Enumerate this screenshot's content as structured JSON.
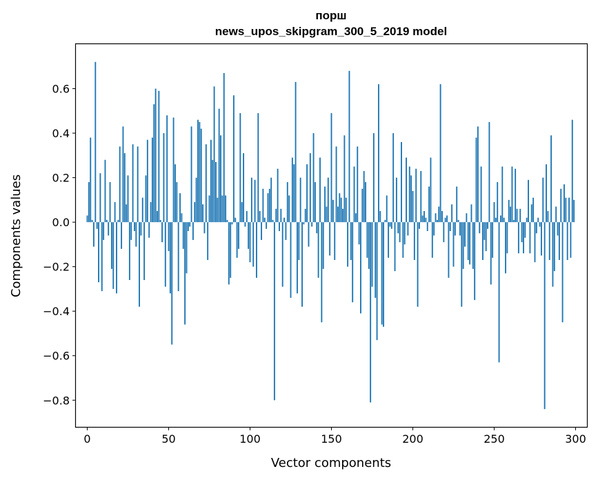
{
  "chart_data": {
    "type": "bar",
    "title": "порш",
    "subtitle": "news_upos_skipgram_300_5_2019 model",
    "xlabel": "Vector components",
    "ylabel": "Components values",
    "xlim": [
      -7,
      307
    ],
    "ylim": [
      -0.92,
      0.8
    ],
    "xticks": [
      0,
      50,
      100,
      150,
      200,
      250,
      300
    ],
    "xtick_labels": [
      "0",
      "50",
      "100",
      "150",
      "200",
      "250",
      "300"
    ],
    "yticks": [
      -0.8,
      -0.6,
      -0.4,
      -0.2,
      0.0,
      0.2,
      0.4,
      0.6
    ],
    "ytick_labels": [
      "−0.8",
      "−0.6",
      "−0.4",
      "−0.2",
      "0.0",
      "0.2",
      "0.4",
      "0.6"
    ],
    "bar_color": "#1f77b4",
    "grid": false,
    "x": [
      0,
      1,
      2,
      3,
      4,
      5,
      6,
      7,
      8,
      9,
      10,
      11,
      12,
      13,
      14,
      15,
      16,
      17,
      18,
      19,
      20,
      21,
      22,
      23,
      24,
      25,
      26,
      27,
      28,
      29,
      30,
      31,
      32,
      33,
      34,
      35,
      36,
      37,
      38,
      39,
      40,
      41,
      42,
      43,
      44,
      45,
      46,
      47,
      48,
      49,
      50,
      51,
      52,
      53,
      54,
      55,
      56,
      57,
      58,
      59,
      60,
      61,
      62,
      63,
      64,
      65,
      66,
      67,
      68,
      69,
      70,
      71,
      72,
      73,
      74,
      75,
      76,
      77,
      78,
      79,
      80,
      81,
      82,
      83,
      84,
      85,
      86,
      87,
      88,
      89,
      90,
      91,
      92,
      93,
      94,
      95,
      96,
      97,
      98,
      99,
      100,
      101,
      102,
      103,
      104,
      105,
      106,
      107,
      108,
      109,
      110,
      111,
      112,
      113,
      114,
      115,
      116,
      117,
      118,
      119,
      120,
      121,
      122,
      123,
      124,
      125,
      126,
      127,
      128,
      129,
      130,
      131,
      132,
      133,
      134,
      135,
      136,
      137,
      138,
      139,
      140,
      141,
      142,
      143,
      144,
      145,
      146,
      147,
      148,
      149,
      150,
      151,
      152,
      153,
      154,
      155,
      156,
      157,
      158,
      159,
      160,
      161,
      162,
      163,
      164,
      165,
      166,
      167,
      168,
      169,
      170,
      171,
      172,
      173,
      174,
      175,
      176,
      177,
      178,
      179,
      180,
      181,
      182,
      183,
      184,
      185,
      186,
      187,
      188,
      189,
      190,
      191,
      192,
      193,
      194,
      195,
      196,
      197,
      198,
      199,
      200,
      201,
      202,
      203,
      204,
      205,
      206,
      207,
      208,
      209,
      210,
      211,
      212,
      213,
      214,
      215,
      216,
      217,
      218,
      219,
      220,
      221,
      222,
      223,
      224,
      225,
      226,
      227,
      228,
      229,
      230,
      231,
      232,
      233,
      234,
      235,
      236,
      237,
      238,
      239,
      240,
      241,
      242,
      243,
      244,
      245,
      246,
      247,
      248,
      249,
      250,
      251,
      252,
      253,
      254,
      255,
      256,
      257,
      258,
      259,
      260,
      261,
      262,
      263,
      264,
      265,
      266,
      267,
      268,
      269,
      270,
      271,
      272,
      273,
      274,
      275,
      276,
      277,
      278,
      279,
      280,
      281,
      282,
      283,
      284,
      285,
      286,
      287,
      288,
      289,
      290,
      291,
      292,
      293,
      294,
      295,
      296,
      297,
      298,
      299
    ],
    "values": [
      0.03,
      0.18,
      0.38,
      0.01,
      -0.11,
      0.72,
      -0.03,
      -0.27,
      0.22,
      -0.31,
      -0.08,
      0.28,
      0.01,
      -0.06,
      0.18,
      -0.21,
      -0.3,
      0.09,
      -0.32,
      0.01,
      0.34,
      -0.12,
      0.43,
      0.31,
      0.08,
      0.21,
      -0.26,
      -0.08,
      0.35,
      -0.04,
      -0.11,
      0.34,
      -0.38,
      -0.06,
      0.11,
      -0.26,
      0.21,
      0.37,
      -0.07,
      0.09,
      0.38,
      0.53,
      0.6,
      0.05,
      0.59,
      0.01,
      -0.09,
      0.4,
      -0.29,
      0.48,
      -0.13,
      -0.32,
      -0.55,
      0.47,
      0.26,
      0.18,
      -0.31,
      0.13,
      0.04,
      -0.12,
      -0.46,
      -0.23,
      -0.04,
      -0.02,
      0.43,
      -0.08,
      0.09,
      0.2,
      0.46,
      0.45,
      0.42,
      0.08,
      -0.05,
      0.35,
      -0.17,
      0.12,
      0.37,
      0.28,
      0.61,
      0.27,
      0.11,
      0.51,
      0.39,
      0.12,
      0.67,
      0.12,
      0.01,
      -0.28,
      -0.25,
      -0.01,
      0.57,
      0.02,
      -0.16,
      -0.12,
      0.49,
      0.09,
      0.31,
      -0.02,
      0.05,
      -0.12,
      -0.18,
      0.2,
      -0.2,
      0.19,
      -0.25,
      0.49,
      0.05,
      -0.08,
      0.15,
      0.02,
      -0.03,
      0.13,
      0.15,
      0.2,
      0.01,
      -0.8,
      0.06,
      0.24,
      -0.04,
      0.06,
      -0.29,
      0.02,
      -0.08,
      0.18,
      0.12,
      -0.34,
      0.29,
      0.26,
      0.63,
      -0.32,
      -0.17,
      0.2,
      -0.38,
      -0.01,
      0.06,
      0.26,
      -0.11,
      0.31,
      -0.02,
      0.4,
      0.18,
      -0.05,
      -0.25,
      0.29,
      -0.45,
      -0.21,
      0.16,
      0.07,
      0.2,
      -0.15,
      0.49,
      0.1,
      -0.17,
      0.34,
      0.07,
      0.13,
      0.11,
      0.06,
      0.39,
      0.11,
      -0.2,
      0.68,
      -0.17,
      -0.36,
      0.25,
      0.04,
      0.34,
      -0.1,
      -0.41,
      0.15,
      0.23,
      0.18,
      -0.16,
      -0.21,
      -0.81,
      -0.29,
      0.4,
      -0.34,
      -0.53,
      0.62,
      0.05,
      -0.46,
      -0.47,
      0.01,
      0.12,
      -0.16,
      -0.02,
      -0.03,
      0.4,
      -0.22,
      0.2,
      -0.05,
      -0.09,
      0.36,
      -0.16,
      -0.1,
      0.29,
      -0.06,
      0.25,
      0.21,
      0.14,
      -0.17,
      0.24,
      -0.38,
      -0.03,
      0.23,
      0.03,
      0.05,
      0.02,
      -0.04,
      0.16,
      0.29,
      -0.16,
      -0.06,
      0.04,
      0.01,
      0.07,
      0.62,
      0.05,
      -0.09,
      0.02,
      0.03,
      -0.25,
      -0.04,
      0.08,
      -0.2,
      -0.06,
      0.16,
      0.01,
      -0.06,
      -0.38,
      -0.21,
      -0.11,
      0.04,
      -0.17,
      -0.19,
      0.08,
      -0.21,
      -0.35,
      0.38,
      0.43,
      -0.05,
      0.25,
      -0.17,
      -0.08,
      -0.13,
      -0.03,
      0.45,
      -0.28,
      -0.16,
      0.09,
      0.02,
      0.18,
      -0.63,
      0.03,
      0.25,
      0.02,
      -0.23,
      -0.14,
      0.1,
      0.07,
      0.25,
      0.01,
      0.24,
      0.06,
      -0.14,
      0.06,
      -0.09,
      -0.14,
      -0.07,
      0.02,
      0.19,
      -0.14,
      0.08,
      0.11,
      -0.18,
      -0.05,
      0.02,
      -0.02,
      -0.15,
      0.2,
      -0.84,
      0.26,
      0.05,
      -0.17,
      0.39,
      -0.29,
      -0.22,
      0.07,
      -0.06,
      -0.17,
      0.15,
      -0.45,
      0.17,
      0.11,
      -0.17,
      0.11,
      -0.16,
      0.46,
      0.1
    ]
  }
}
